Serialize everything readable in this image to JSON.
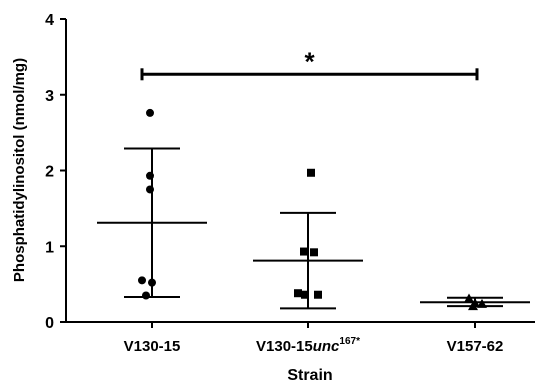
{
  "chart_data": {
    "type": "scatter",
    "title": "",
    "xlabel": "Strain",
    "ylabel": "Phosphatidylinositol (nmol/mg)",
    "ylim": [
      0,
      4
    ],
    "yticks": [
      "0",
      "1",
      "2",
      "3",
      "4"
    ],
    "grid": false,
    "categories": [
      {
        "base": "V130-15",
        "italic": "",
        "sup": ""
      },
      {
        "base": "V130-15",
        "italic": "unc",
        "sup": "167*"
      },
      {
        "base": "V157-62",
        "italic": "",
        "sup": ""
      }
    ],
    "groups": [
      {
        "marker": "circle",
        "points": [
          2.76,
          1.93,
          1.75,
          0.55,
          0.52,
          0.35
        ],
        "mean": 1.31,
        "sd_upper": 2.29,
        "sd_lower": 0.33
      },
      {
        "marker": "square",
        "points": [
          1.97,
          0.93,
          0.92,
          0.38,
          0.36,
          0.36
        ],
        "mean": 0.81,
        "sd_upper": 1.44,
        "sd_lower": 0.18
      },
      {
        "marker": "triangle",
        "points": [
          0.31,
          0.25,
          0.24,
          0.21
        ],
        "mean": 0.26,
        "sd_upper": 0.32,
        "sd_lower": 0.21
      }
    ],
    "significance": {
      "from": 0,
      "to": 2,
      "y": 3.27,
      "label": "*"
    }
  }
}
